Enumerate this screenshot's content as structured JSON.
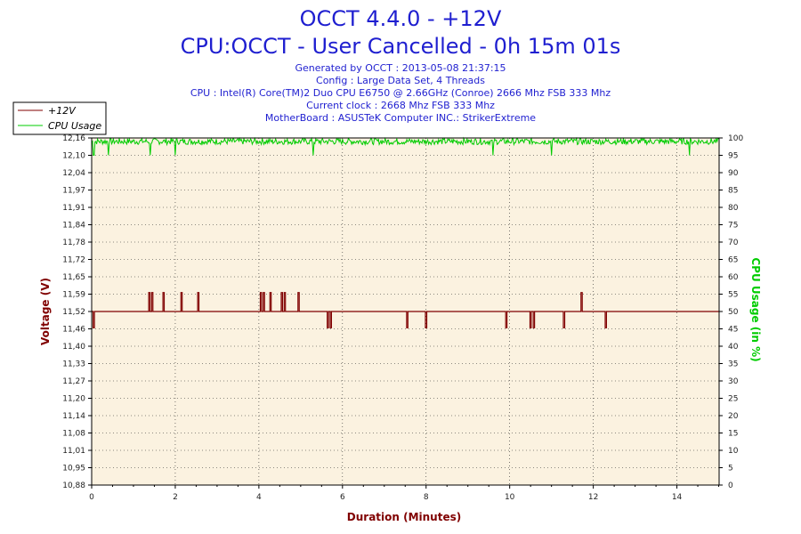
{
  "title": "OCCT 4.4.0 - +12V",
  "subtitle": "CPU:OCCT - User Cancelled - 0h 15m 01s",
  "info_lines": [
    "Generated by OCCT : 2013-05-08 21:37:15",
    "Config : Large Data Set, 4 Threads",
    "CPU : Intel(R) Core(TM)2 Duo CPU E6750 @ 2.66GHz (Conroe) 2666 Mhz FSB 333 Mhz",
    "Current clock : 2668 Mhz FSB 333 Mhz",
    "MotherBoard : ASUSTeK Computer INC.: StrikerExtreme"
  ],
  "colors": {
    "voltage": "#800000",
    "cpu": "#00cc00",
    "title": "#1f1fd0",
    "plot_bg": "#fbf2e0",
    "grid": "#222222"
  },
  "chart_data": {
    "type": "line",
    "xlabel": "Duration (Minutes)",
    "ylabel_left": "Voltage (V)",
    "ylabel_right": "CPU Usage (in %)",
    "xlim": [
      0,
      15.01
    ],
    "ylim_left": [
      10.88,
      12.16
    ],
    "ylim_right": [
      0,
      100
    ],
    "x_ticks": [
      0,
      2,
      4,
      6,
      8,
      10,
      12,
      14
    ],
    "y_ticks_left": [
      "12,16",
      "12,10",
      "12,04",
      "11,97",
      "11,91",
      "11,84",
      "11,78",
      "11,72",
      "11,65",
      "11,59",
      "11,52",
      "11,46",
      "11,40",
      "11,33",
      "11,27",
      "11,20",
      "11,14",
      "11,08",
      "11,01",
      "10,95",
      "10,88"
    ],
    "y_ticks_right": [
      100,
      95,
      90,
      85,
      80,
      75,
      70,
      65,
      60,
      55,
      50,
      45,
      40,
      35,
      30,
      25,
      20,
      15,
      10,
      5,
      0
    ],
    "grid": true,
    "legend": "top-left",
    "series": [
      {
        "name": "+12V",
        "axis": "left",
        "baseline": 11.52,
        "spikes_up": [
          1.38,
          1.45,
          1.72,
          2.15,
          2.55,
          4.05,
          4.12,
          4.28,
          4.55,
          4.62,
          4.95,
          11.72
        ],
        "spikes_up_value": 11.59,
        "spikes_down": [
          0.05,
          5.65,
          5.72,
          7.55,
          8.0,
          9.92,
          10.5,
          10.58,
          11.3,
          12.3
        ],
        "spikes_down_value": 11.46
      },
      {
        "name": "CPU Usage",
        "axis": "right",
        "baseline": 99,
        "dips": [
          0.05,
          0.4,
          1.4,
          2.0,
          5.3,
          9.6,
          11.0,
          14.3
        ],
        "dip_value": 95
      }
    ]
  }
}
